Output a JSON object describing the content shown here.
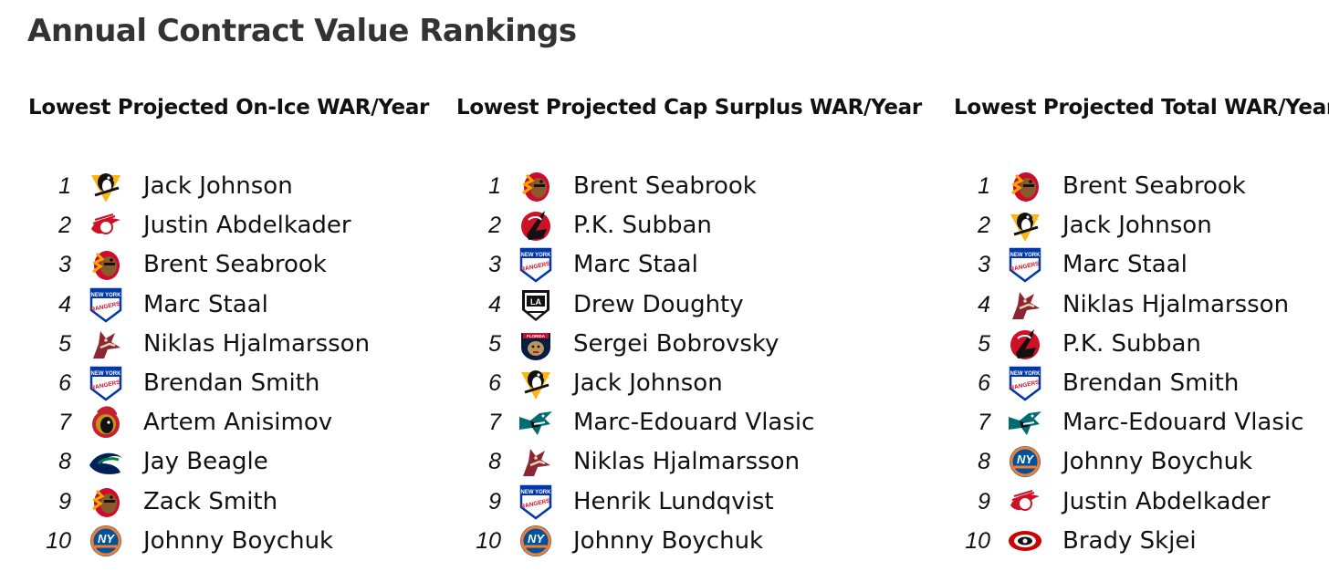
{
  "page": {
    "title": "Annual Contract Value Rankings"
  },
  "columns": [
    {
      "heading": "Lowest Projected On-Ice WAR/Year",
      "rows": [
        {
          "rank": "1",
          "team_icon": "penguins-logo-icon",
          "player": "Jack Johnson"
        },
        {
          "rank": "2",
          "team_icon": "red-wings-logo-icon",
          "player": "Justin Abdelkader"
        },
        {
          "rank": "3",
          "team_icon": "blackhawks-logo-icon",
          "player": "Brent Seabrook"
        },
        {
          "rank": "4",
          "team_icon": "rangers-logo-icon",
          "player": "Marc Staal"
        },
        {
          "rank": "5",
          "team_icon": "coyotes-logo-icon",
          "player": "Niklas Hjalmarsson"
        },
        {
          "rank": "6",
          "team_icon": "rangers-logo-icon",
          "player": "Brendan Smith"
        },
        {
          "rank": "7",
          "team_icon": "senators-logo-icon",
          "player": "Artem Anisimov"
        },
        {
          "rank": "8",
          "team_icon": "canucks-logo-icon",
          "player": "Jay Beagle"
        },
        {
          "rank": "9",
          "team_icon": "blackhawks-logo-icon",
          "player": "Zack Smith"
        },
        {
          "rank": "10",
          "team_icon": "islanders-logo-icon",
          "player": "Johnny Boychuk"
        }
      ]
    },
    {
      "heading": "Lowest Projected Cap Surplus WAR/Year",
      "rows": [
        {
          "rank": "1",
          "team_icon": "blackhawks-logo-icon",
          "player": "Brent Seabrook"
        },
        {
          "rank": "2",
          "team_icon": "devils-logo-icon",
          "player": "P.K. Subban"
        },
        {
          "rank": "3",
          "team_icon": "rangers-logo-icon",
          "player": "Marc Staal"
        },
        {
          "rank": "4",
          "team_icon": "kings-logo-icon",
          "player": "Drew Doughty"
        },
        {
          "rank": "5",
          "team_icon": "panthers-logo-icon",
          "player": "Sergei Bobrovsky"
        },
        {
          "rank": "6",
          "team_icon": "penguins-logo-icon",
          "player": "Jack Johnson"
        },
        {
          "rank": "7",
          "team_icon": "sharks-logo-icon",
          "player": "Marc-Edouard Vlasic"
        },
        {
          "rank": "8",
          "team_icon": "coyotes-logo-icon",
          "player": "Niklas Hjalmarsson"
        },
        {
          "rank": "9",
          "team_icon": "rangers-logo-icon",
          "player": "Henrik Lundqvist"
        },
        {
          "rank": "10",
          "team_icon": "islanders-logo-icon",
          "player": "Johnny Boychuk"
        }
      ]
    },
    {
      "heading": "Lowest Projected Total WAR/Year",
      "rows": [
        {
          "rank": "1",
          "team_icon": "blackhawks-logo-icon",
          "player": "Brent Seabrook"
        },
        {
          "rank": "2",
          "team_icon": "penguins-logo-icon",
          "player": "Jack Johnson"
        },
        {
          "rank": "3",
          "team_icon": "rangers-logo-icon",
          "player": "Marc Staal"
        },
        {
          "rank": "4",
          "team_icon": "coyotes-logo-icon",
          "player": "Niklas Hjalmarsson"
        },
        {
          "rank": "5",
          "team_icon": "devils-logo-icon",
          "player": "P.K. Subban"
        },
        {
          "rank": "6",
          "team_icon": "rangers-logo-icon",
          "player": "Brendan Smith"
        },
        {
          "rank": "7",
          "team_icon": "sharks-logo-icon",
          "player": "Marc-Edouard Vlasic"
        },
        {
          "rank": "8",
          "team_icon": "islanders-logo-icon",
          "player": "Johnny Boychuk"
        },
        {
          "rank": "9",
          "team_icon": "red-wings-logo-icon",
          "player": "Justin Abdelkader"
        },
        {
          "rank": "10",
          "team_icon": "hurricanes-logo-icon",
          "player": "Brady Skjei"
        }
      ]
    }
  ],
  "logo_text": {
    "rangers_top": "NEW YORK",
    "rangers_main": "RANGERS",
    "islanders": "NY",
    "kings": "LA",
    "panthers": "FLORIDA"
  },
  "colors": {
    "title": "#333333",
    "text": "#111111",
    "blackhawks_red": "#cf0a2c",
    "rangers_blue": "#0038a8",
    "islanders_orange": "#f47d30",
    "islanders_blue": "#00539b",
    "devils_red": "#ce1126",
    "penguins_gold": "#fcb514",
    "sharks_teal": "#006d75",
    "canucks_blue": "#00205b",
    "coyotes_red": "#8c2633"
  }
}
